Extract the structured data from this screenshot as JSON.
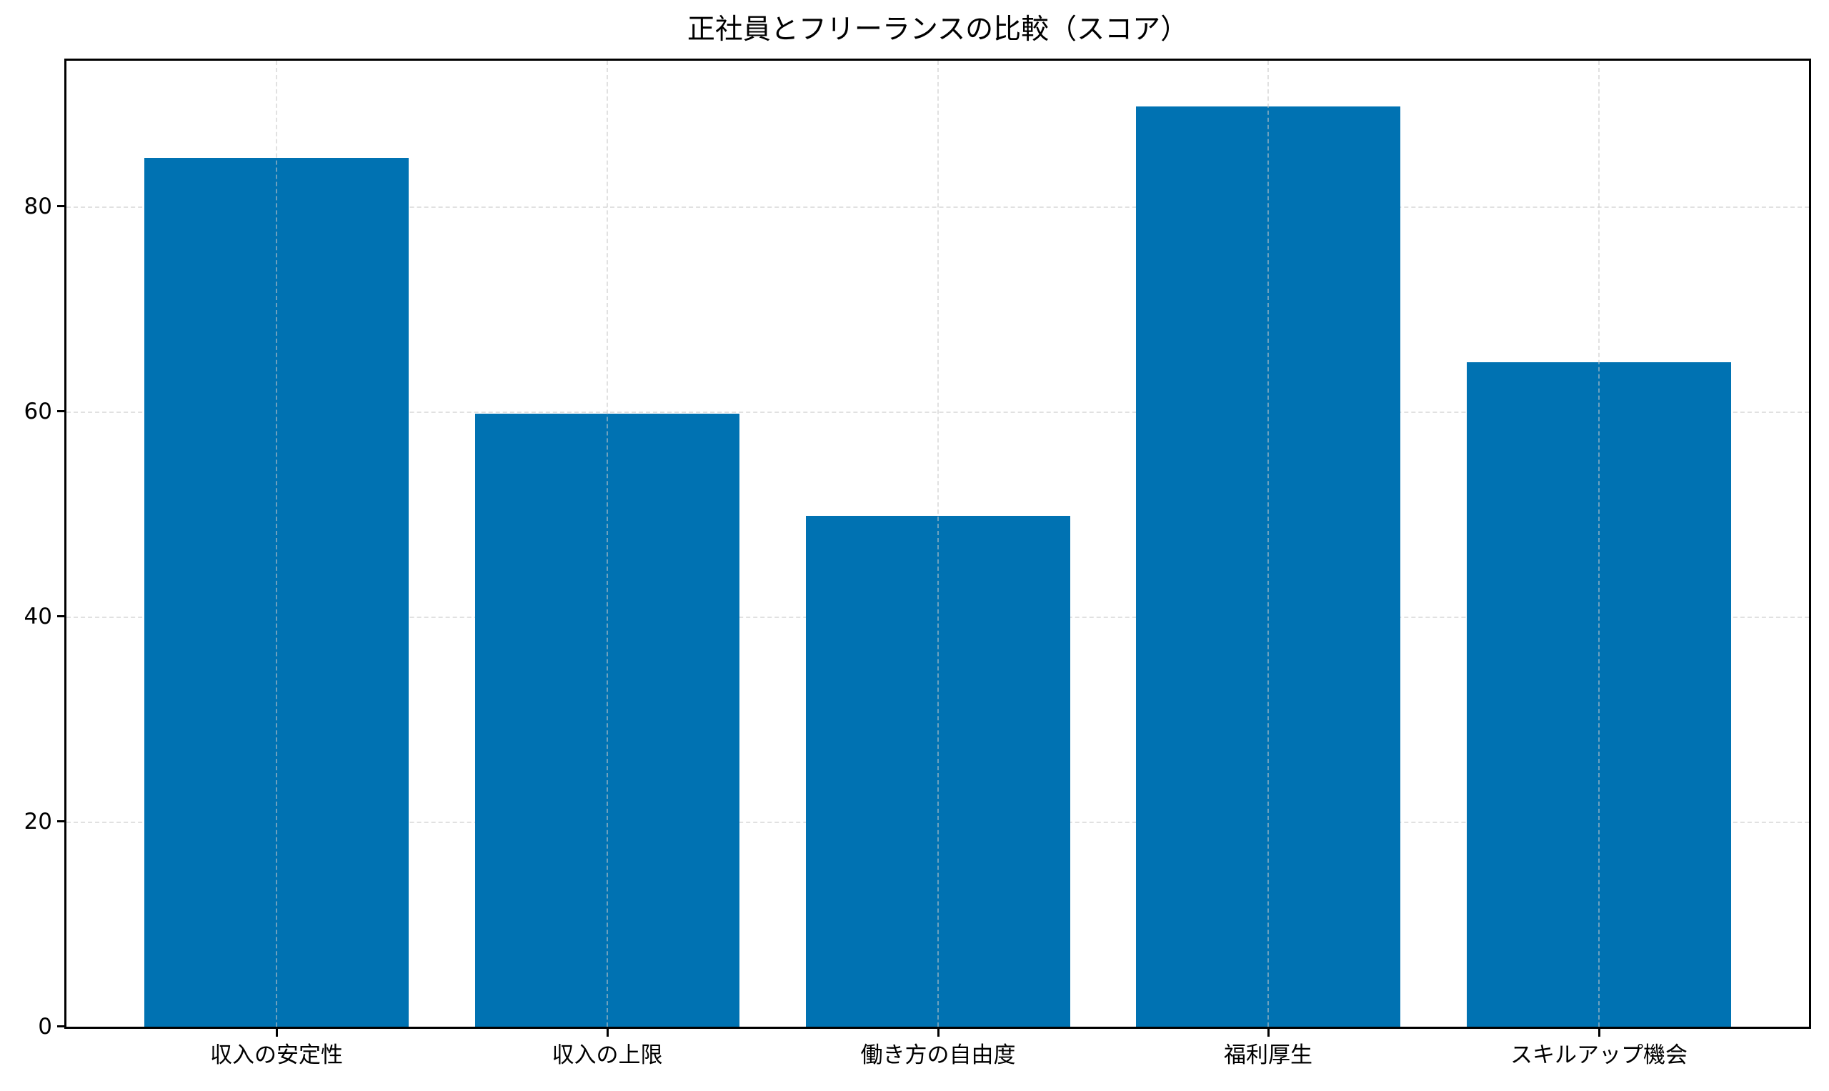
{
  "chart_data": {
    "type": "bar",
    "title": "正社員とフリーランスの比較（スコア）",
    "xlabel": "",
    "ylabel": "",
    "categories": [
      "収入の安定性",
      "収入の上限",
      "働き方の自由度",
      "福利厚生",
      "スキルアップ機会"
    ],
    "values": [
      85,
      60,
      50,
      90,
      65
    ],
    "ylim": [
      0,
      94.5
    ],
    "yticks": [
      0,
      20,
      40,
      60,
      80
    ],
    "ytick_labels": [
      "0",
      "20",
      "40",
      "60",
      "80"
    ],
    "grid": true,
    "grid_style": "dashed",
    "legend": null,
    "bar_color": "#0072B2"
  }
}
